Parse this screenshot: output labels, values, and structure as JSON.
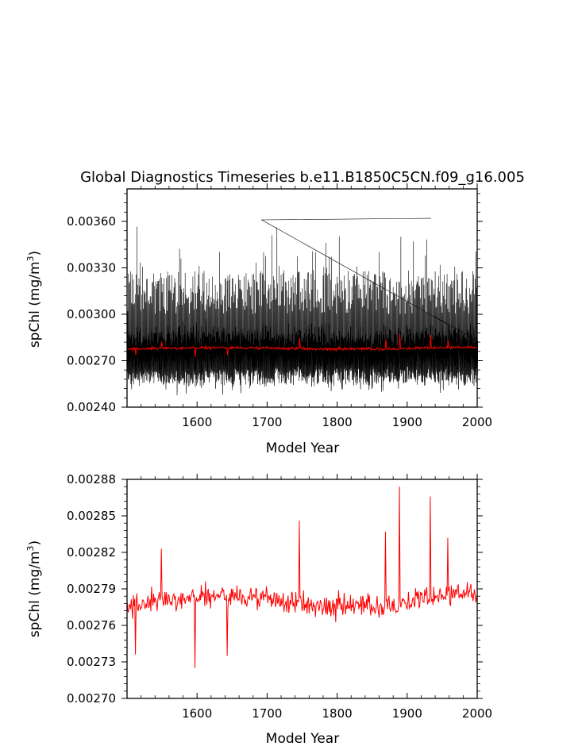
{
  "chart_data": [
    {
      "type": "line",
      "title": "Global Diagnostics Timeseries b.e11.B1850C5CN.f09_g16.005",
      "xlabel": "Model Year",
      "ylabel": {
        "base": "spChl (mg/m",
        "sup": "3",
        "tail": ")"
      },
      "xlim": [
        1500,
        2000
      ],
      "ylim": [
        0.0024,
        0.00381
      ],
      "xticks": [
        1600,
        1700,
        1800,
        1900,
        2000
      ],
      "xtick_labels": [
        "1600",
        "1700",
        "1800",
        "1900",
        "2000"
      ],
      "yticks": [
        0.0024,
        0.0027,
        0.003,
        0.0033,
        0.0036
      ],
      "ytick_labels": [
        "0.00240",
        "0.00270",
        "0.00300",
        "0.00330",
        "0.00360"
      ],
      "series": [
        {
          "kind": "monthly",
          "color": "#000000",
          "x_start": 1500,
          "x_end": 2000,
          "typical_min": 0.00252,
          "typical_max": 0.00325,
          "observed_min": 0.00245,
          "observed_max": 0.00362
        },
        {
          "kind": "annual_mean",
          "color": "#ff0000",
          "x_start": 1500,
          "x_end": 2000,
          "typical_range": [
            0.00274,
            0.00281
          ]
        }
      ]
    },
    {
      "type": "line",
      "title": "",
      "xlabel": "Model Year",
      "ylabel": {
        "base": "spChl (mg/m",
        "sup": "3",
        "tail": ")"
      },
      "xlim": [
        1500,
        2000
      ],
      "ylim": [
        0.0027,
        0.00288
      ],
      "xticks": [
        1600,
        1700,
        1800,
        1900,
        2000
      ],
      "xtick_labels": [
        "1600",
        "1700",
        "1800",
        "1900",
        "2000"
      ],
      "yticks": [
        0.0027,
        0.00273,
        0.00276,
        0.00279,
        0.00282,
        0.00285,
        0.00288
      ],
      "ytick_labels": [
        "0.00270",
        "0.00273",
        "0.00276",
        "0.00279",
        "0.00282",
        "0.00285",
        "0.00288"
      ],
      "series": [
        {
          "kind": "annual_mean",
          "color": "#ff0000",
          "x_start": 1500,
          "x_end": 2000,
          "typical_range": [
            0.00274,
            0.00281
          ],
          "notable_points": [
            [
              1512,
              0.002736
            ],
            [
              1549,
              0.002823
            ],
            [
              1597,
              0.002725
            ],
            [
              1643,
              0.002735
            ],
            [
              1746,
              0.002846
            ],
            [
              1869,
              0.002837
            ],
            [
              1889,
              0.002874
            ],
            [
              1933,
              0.002866
            ],
            [
              1958,
              0.002832
            ]
          ]
        }
      ]
    }
  ]
}
